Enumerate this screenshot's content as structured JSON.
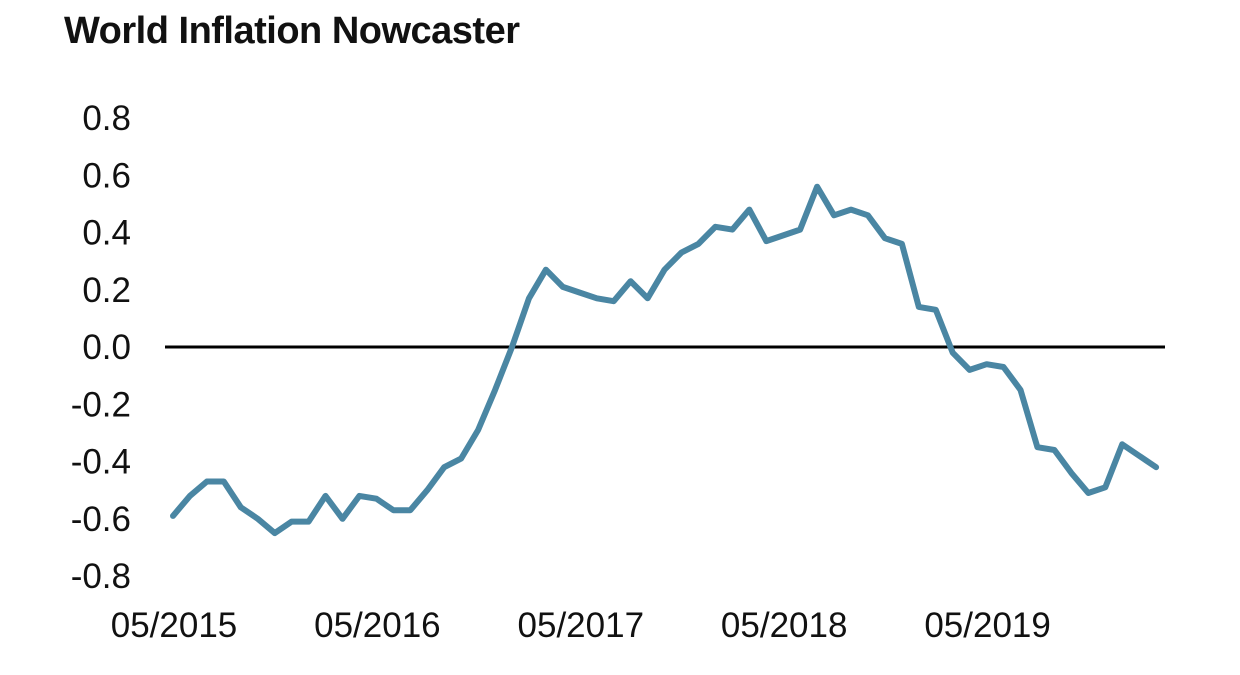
{
  "chart_data": {
    "type": "line",
    "title": "World Inflation Nowcaster",
    "xlabel": "",
    "ylabel": "",
    "ylim": [
      -0.8,
      0.8
    ],
    "yticks": [
      "0.8",
      "0.6",
      "0.4",
      "0.2",
      "0.0",
      "-0.2",
      "-0.4",
      "-0.6",
      "-0.8"
    ],
    "xticks": [
      "05/2015",
      "05/2016",
      "05/2017",
      "05/2018",
      "05/2019"
    ],
    "x_start": "05/2015",
    "zero_line": true,
    "grid": false,
    "colors": {
      "series": "#4a86a3",
      "zero_line": "#000000"
    },
    "series": [
      {
        "values": [
          -0.59,
          -0.52,
          -0.47,
          -0.47,
          -0.56,
          -0.6,
          -0.65,
          -0.61,
          -0.61,
          -0.52,
          -0.6,
          -0.52,
          -0.53,
          -0.57,
          -0.57,
          -0.5,
          -0.42,
          -0.39,
          -0.29,
          -0.15,
          0.0,
          0.17,
          0.27,
          0.21,
          0.19,
          0.17,
          0.16,
          0.23,
          0.17,
          0.27,
          0.33,
          0.36,
          0.42,
          0.41,
          0.48,
          0.37,
          0.39,
          0.41,
          0.56,
          0.46,
          0.48,
          0.46,
          0.38,
          0.36,
          0.14,
          0.13,
          -0.02,
          -0.08,
          -0.06,
          -0.07,
          -0.15,
          -0.35,
          -0.36,
          -0.44,
          -0.51,
          -0.49,
          -0.34,
          -0.38,
          -0.42
        ]
      }
    ]
  }
}
